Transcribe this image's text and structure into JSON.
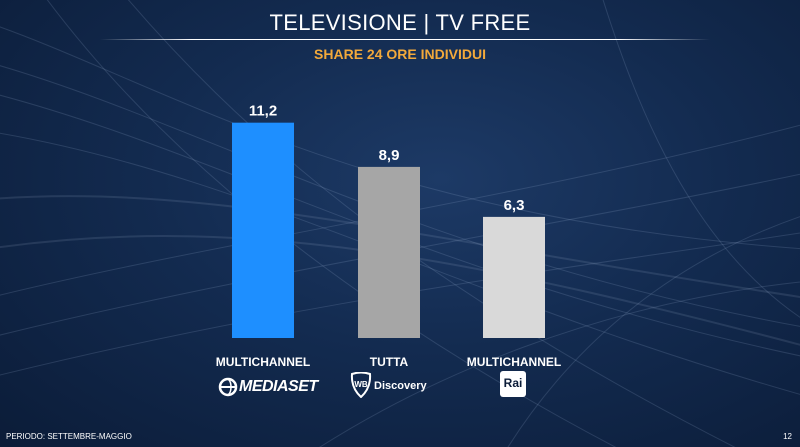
{
  "header": {
    "title": "TELEVISIONE | TV FREE",
    "subtitle": "SHARE 24 ORE INDIVIDUI"
  },
  "chart_data": {
    "type": "bar",
    "categories": [
      "MULTICHANNEL",
      "TUTTA",
      "MULTICHANNEL"
    ],
    "values": [
      11.2,
      8.9,
      6.3
    ],
    "value_labels": [
      "11,2",
      "8,9",
      "6,3"
    ],
    "bar_colors": [
      "#1e8fff",
      "#a6a6a6",
      "#d9d9d9"
    ],
    "title": "",
    "xlabel": "",
    "ylabel": "",
    "ylim": [
      0,
      12.9
    ],
    "grid": false,
    "legend": "none"
  },
  "logos": {
    "mediaset": {
      "icon": "mediaset-logo-icon",
      "text": "MEDIASET"
    },
    "wbd": {
      "icon": "warner-bros-shield-icon",
      "text": "Discovery"
    },
    "rai": {
      "icon": "rai-logo-icon",
      "text": "Rai"
    }
  },
  "footer": {
    "period": "PERIODO: SETTEMBRE-MAGGIO",
    "page_number": "12"
  }
}
